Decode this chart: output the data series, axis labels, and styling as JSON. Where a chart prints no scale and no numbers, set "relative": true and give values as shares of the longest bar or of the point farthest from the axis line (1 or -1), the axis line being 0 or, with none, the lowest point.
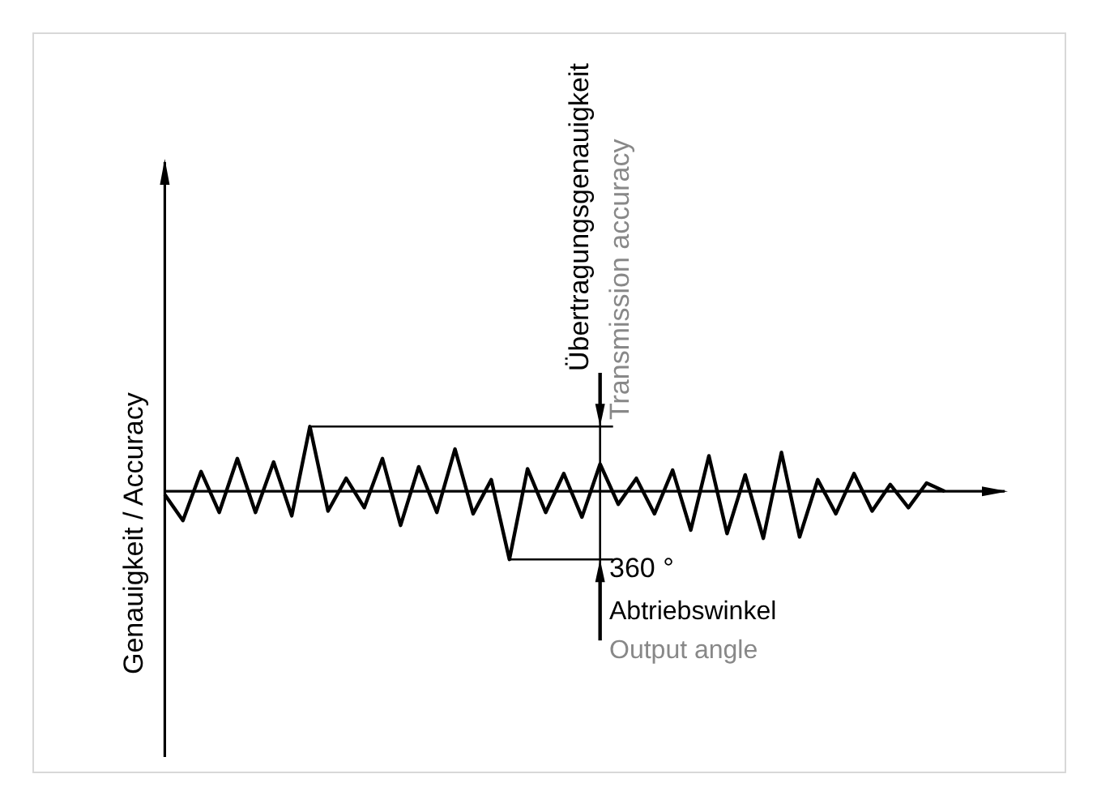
{
  "chart_data": {
    "type": "line",
    "relative": true,
    "color": "#000000",
    "categories": [
      null,
      null,
      null,
      null,
      null,
      null,
      null,
      null,
      null,
      null,
      null,
      null,
      null,
      null,
      null,
      null,
      null,
      null,
      null,
      null,
      null,
      null,
      null,
      null,
      null,
      null,
      null,
      null,
      null,
      null,
      null,
      null,
      null,
      null,
      null,
      null,
      null,
      null,
      null,
      null,
      null,
      null,
      null,
      null
    ],
    "values": [
      -0.05,
      -0.43,
      0.29,
      -0.31,
      0.48,
      -0.31,
      0.43,
      -0.36,
      0.95,
      -0.29,
      0.19,
      -0.24,
      0.48,
      -0.5,
      0.36,
      -0.31,
      0.62,
      -0.33,
      0.17,
      -1,
      0.33,
      -0.31,
      0.26,
      -0.38,
      0.4,
      -0.19,
      0.19,
      -0.33,
      0.31,
      -0.57,
      0.52,
      -0.62,
      0.24,
      -0.69,
      0.57,
      -0.67,
      0.17,
      -0.33,
      0.26,
      -0.29,
      0.1,
      -0.24,
      0.12,
      0
    ],
    "xlabel": "Abtriebswinkel",
    "ylabel": "Genauigkeit / Accuracy",
    "annotations": [
      "360 °",
      "Output angle",
      "Übertragungsgenauigkeit",
      "Transmission accuracy"
    ]
  }
}
